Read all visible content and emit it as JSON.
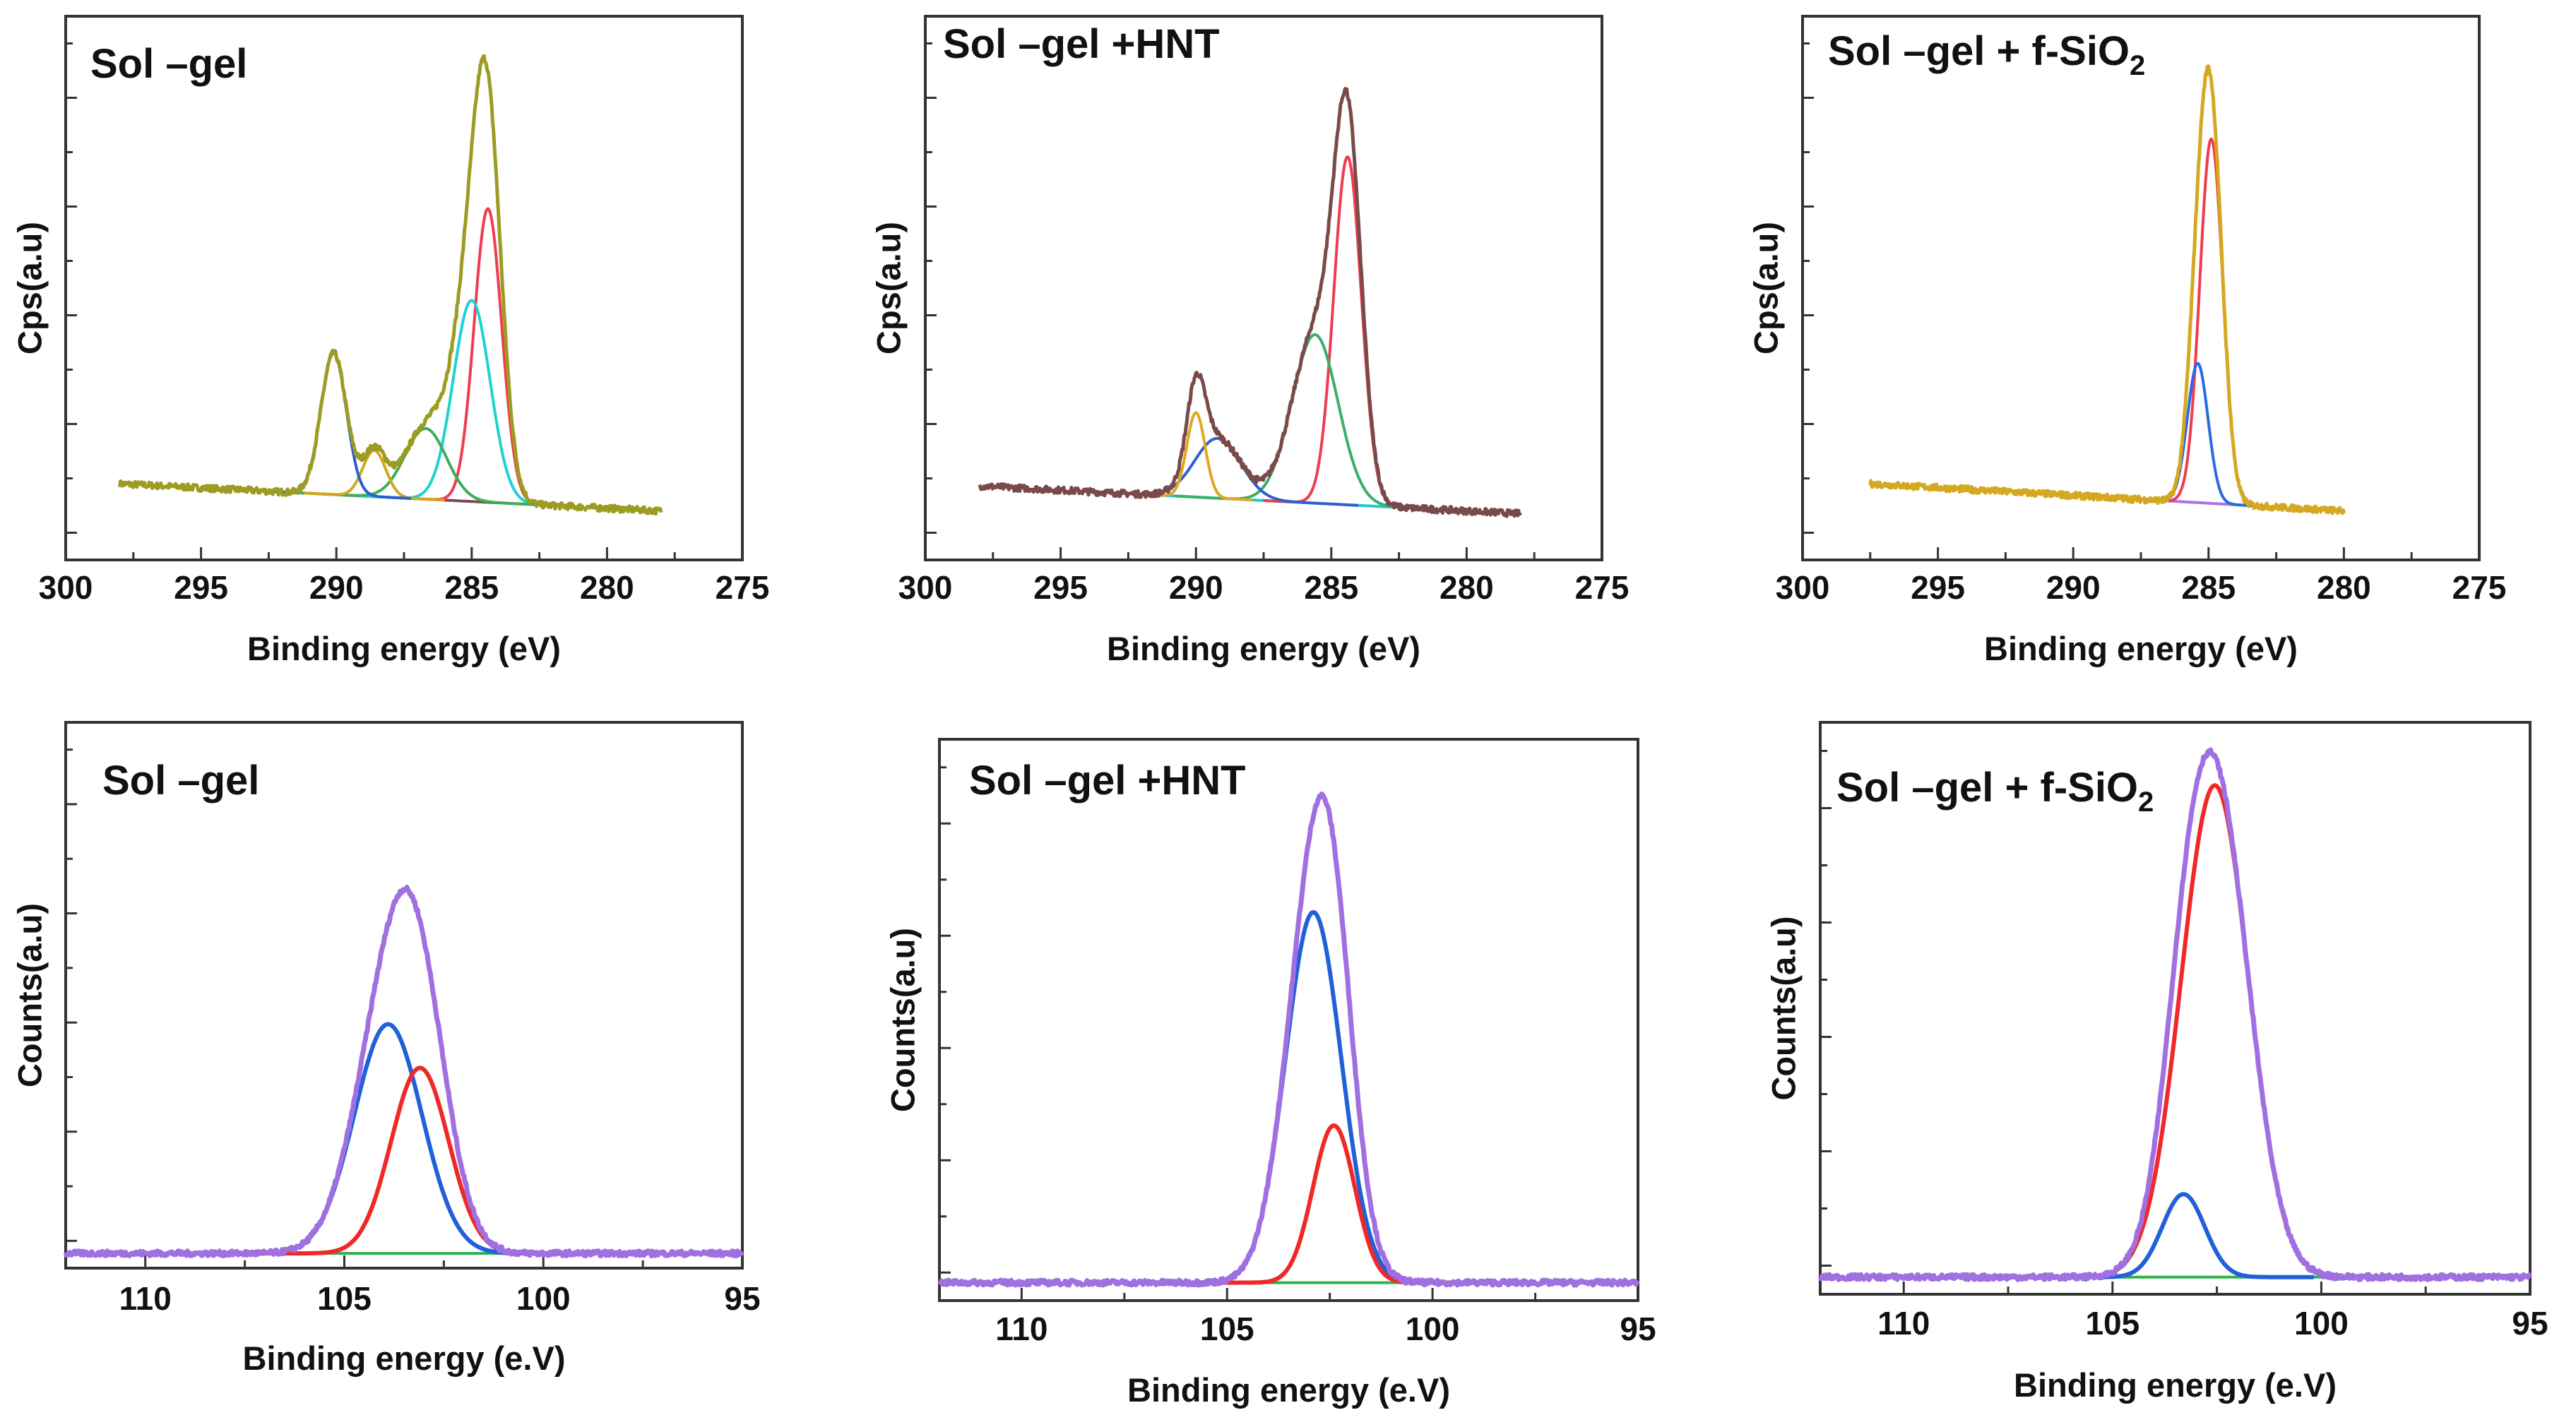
{
  "chart_data": [
    {
      "type": "line",
      "title": "Sol –gel",
      "title_sub": "",
      "xlabel": "Binding energy (eV)",
      "ylabel": "Cps(a.u)",
      "xlim": [
        300,
        275
      ],
      "ylim": [
        0,
        100
      ],
      "xticks": [
        "300",
        "295",
        "290",
        "285",
        "280",
        "275"
      ],
      "data_range": [
        298,
        278
      ],
      "baseline": [
        14,
        9
      ],
      "envelope_color": "#9c9c22",
      "baseline_color": "#7a4a5a",
      "components": [
        {
          "center": 284.4,
          "amplitude": 54,
          "fwhm": 1.2,
          "color": "#f03c50"
        },
        {
          "center": 285.0,
          "amplitude": 37,
          "fwhm": 1.6,
          "color": "#1ed2d2"
        },
        {
          "center": 286.7,
          "amplitude": 13,
          "fwhm": 1.8,
          "color": "#3cae5a"
        },
        {
          "center": 288.6,
          "amplitude": 8.5,
          "fwhm": 1.0,
          "color": "#d4a81c"
        },
        {
          "center": 290.1,
          "amplitude": 26,
          "fwhm": 1.1,
          "color": "#2a5fd0"
        }
      ]
    },
    {
      "type": "line",
      "title": "Sol –gel +HNT",
      "title_sub": "",
      "xlabel": "Binding energy (eV)",
      "ylabel": "Cps(a.u)",
      "xlim": [
        300,
        275
      ],
      "ylim": [
        0,
        100
      ],
      "xticks": [
        "300",
        "295",
        "290",
        "285",
        "280",
        "275"
      ],
      "data_range": [
        298,
        278
      ],
      "baseline": [
        13.6,
        8.5
      ],
      "envelope_color": "#7a4a4a",
      "baseline_color": "#20c8d0",
      "components": [
        {
          "center": 284.4,
          "amplitude": 64,
          "fwhm": 1.2,
          "color": "#f03c50"
        },
        {
          "center": 285.6,
          "amplitude": 31,
          "fwhm": 2.0,
          "color": "#3aae6a"
        },
        {
          "center": 289.2,
          "amplitude": 11,
          "fwhm": 2.0,
          "color": "#3060d0"
        },
        {
          "center": 290.0,
          "amplitude": 15.5,
          "fwhm": 0.8,
          "color": "#e0a820"
        }
      ]
    },
    {
      "type": "line",
      "title": "Sol –gel + f-SiO",
      "title_sub": "2",
      "xlabel": "Binding energy (eV)",
      "ylabel": "Cps(a.u)",
      "xlim": [
        300,
        275
      ],
      "ylim": [
        0,
        100
      ],
      "xticks": [
        "300",
        "295",
        "290",
        "285",
        "280",
        "275"
      ],
      "data_range": [
        297.5,
        280
      ],
      "baseline": [
        14,
        9
      ],
      "envelope_color": "#d4a820",
      "baseline_color": "#b070e0",
      "components": [
        {
          "center": 284.9,
          "amplitude": 67,
          "fwhm": 1.0,
          "color": "#f03c50"
        },
        {
          "center": 285.4,
          "amplitude": 25.6,
          "fwhm": 0.9,
          "color": "#2a6ae0"
        }
      ]
    },
    {
      "type": "line",
      "title": "Sol –gel",
      "title_sub": "",
      "xlabel": "Binding energy (e.V)",
      "ylabel": "Counts(a.u)",
      "xlim": [
        112,
        95
      ],
      "ylim": [
        0,
        100
      ],
      "xticks": [
        "110",
        "105",
        "100",
        "95"
      ],
      "data_range": [
        112,
        95
      ],
      "baseline": [
        2.7,
        2.7
      ],
      "envelope_color": "#a070e0",
      "baseline_color": "#30b050",
      "components": [
        {
          "center": 103.9,
          "amplitude": 42,
          "fwhm": 2.0,
          "color": "#2060d8"
        },
        {
          "center": 103.1,
          "amplitude": 34,
          "fwhm": 1.7,
          "color": "#f02828"
        }
      ]
    },
    {
      "type": "line",
      "title": "Sol –gel +HNT",
      "title_sub": "",
      "xlabel": "Binding energy (e.V)",
      "ylabel": "Counts(a.u)",
      "xlim": [
        112,
        95
      ],
      "ylim": [
        0,
        100
      ],
      "xticks": [
        "110",
        "105",
        "100",
        "95"
      ],
      "data_range": [
        112,
        95
      ],
      "baseline": [
        3.2,
        3.2
      ],
      "envelope_color": "#a070e0",
      "baseline_color": "#30b050",
      "components": [
        {
          "center": 102.9,
          "amplitude": 66,
          "fwhm": 1.6,
          "color": "#2060d8"
        },
        {
          "center": 102.4,
          "amplitude": 28,
          "fwhm": 1.2,
          "color": "#f02828"
        }
      ]
    },
    {
      "type": "line",
      "title": "Sol –gel + f-SiO",
      "title_sub": "2",
      "xlabel": "Binding energy (e.V)",
      "ylabel": "Counts(a.u)",
      "xlim": [
        112,
        95
      ],
      "ylim": [
        0,
        100
      ],
      "xticks": [
        "110",
        "105",
        "100",
        "95"
      ],
      "data_range": [
        112,
        95
      ],
      "baseline": [
        3,
        3
      ],
      "envelope_color": "#a070e0",
      "baseline_color": "#30b050",
      "components": [
        {
          "center": 102.55,
          "amplitude": 86,
          "fwhm": 1.9,
          "color": "#f02828"
        },
        {
          "center": 103.3,
          "amplitude": 14.5,
          "fwhm": 1.2,
          "color": "#2060d8"
        }
      ]
    }
  ]
}
